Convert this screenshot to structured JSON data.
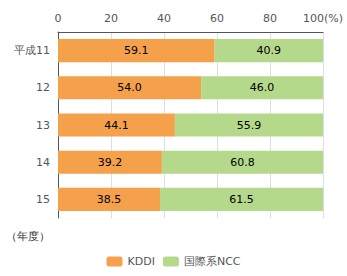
{
  "chart_data": {
    "type": "bar",
    "orientation": "horizontal",
    "stacked": true,
    "categories": [
      "平成11",
      "12",
      "13",
      "14",
      "15"
    ],
    "series": [
      {
        "name": "KDDI",
        "color": "#F5A04B",
        "values": [
          59.1,
          54.0,
          44.1,
          39.2,
          38.5
        ],
        "value_labels": [
          "59.1",
          "54.0",
          "44.1",
          "39.2",
          "38.5"
        ]
      },
      {
        "name": "国際系NCC",
        "color": "#B5D98B",
        "values": [
          40.9,
          46.0,
          55.9,
          60.8,
          61.5
        ],
        "value_labels": [
          "40.9",
          "46.0",
          "55.9",
          "60.8",
          "61.5"
        ]
      }
    ],
    "xlim": [
      0,
      100
    ],
    "xticks": [
      0,
      20,
      40,
      60,
      80,
      {
        "value": 100,
        "label": "100(%)"
      }
    ],
    "ylabel": "（年度）",
    "grid": true,
    "legend": "bottom",
    "data_labels": true
  }
}
